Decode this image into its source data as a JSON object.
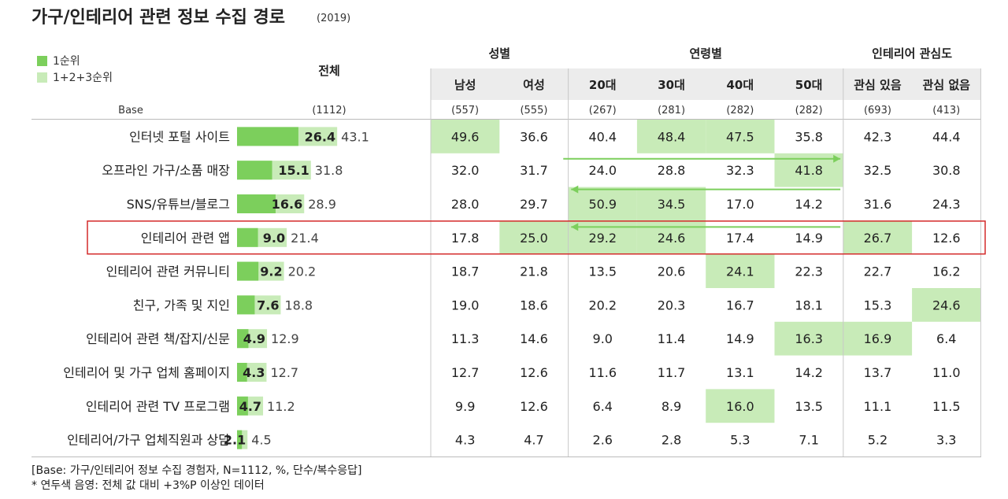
{
  "title": "가구/인테리어 관련 정보 수집 경로",
  "year": "(2019)",
  "legend": [
    {
      "label": "1순위",
      "color": "#7ccf5c"
    },
    {
      "label": "1+2+3순위",
      "color": "#c8ebb8"
    }
  ],
  "colors": {
    "dark_bar": "#7ccf5c",
    "light_bar": "#c8ebb8",
    "highlight": "#c8ebb8",
    "arrow": "#7ccf5c",
    "box": "#d42a2a"
  },
  "base_label": "Base",
  "overall_label": "전체",
  "groups": [
    {
      "label": "성별",
      "cols": [
        0,
        1
      ]
    },
    {
      "label": "연령별",
      "cols": [
        2,
        3,
        4,
        5
      ]
    },
    {
      "label": "인테리어 관심도",
      "cols": [
        6,
        7
      ]
    }
  ],
  "columns": [
    "남성",
    "여성",
    "20대",
    "30대",
    "40대",
    "50대",
    "관심 있음",
    "관심 없음"
  ],
  "bases": {
    "overall": "(1112)",
    "columns": [
      "(557)",
      "(555)",
      "(267)",
      "(281)",
      "(282)",
      "(282)",
      "(693)",
      "(413)"
    ]
  },
  "chart_data": {
    "type": "table",
    "rows": [
      {
        "label": "인터넷 포털 사이트",
        "first": 26.4,
        "top3": 43.1,
        "cells": [
          "49.6",
          "36.6",
          "40.4",
          "48.4",
          "47.5",
          "35.8",
          "42.3",
          "44.4"
        ],
        "hi": [
          0,
          3,
          4
        ]
      },
      {
        "label": "오프라인 가구/소품 매장",
        "first": 15.1,
        "top3": 31.8,
        "cells": [
          "32.0",
          "31.7",
          "24.0",
          "28.8",
          "32.3",
          "41.8",
          "32.5",
          "30.8"
        ],
        "hi": [
          5
        ]
      },
      {
        "label": "SNS/유튜브/블로그",
        "first": 16.6,
        "top3": 28.9,
        "cells": [
          "28.0",
          "29.7",
          "50.9",
          "34.5",
          "17.0",
          "14.2",
          "31.6",
          "24.3"
        ],
        "hi": [
          2,
          3
        ]
      },
      {
        "label": "인테리어 관련 앱",
        "first": 9.0,
        "top3": 21.4,
        "cells": [
          "17.8",
          "25.0",
          "29.2",
          "24.6",
          "17.4",
          "14.9",
          "26.7",
          "12.6"
        ],
        "hi": [
          1,
          2,
          3,
          6
        ]
      },
      {
        "label": "인테리어 관련 커뮤니티",
        "first": 9.2,
        "top3": 20.2,
        "cells": [
          "18.7",
          "21.8",
          "13.5",
          "20.6",
          "24.1",
          "22.3",
          "22.7",
          "16.2"
        ],
        "hi": [
          4
        ]
      },
      {
        "label": "친구, 가족 및 지인",
        "first": 7.6,
        "top3": 18.8,
        "cells": [
          "19.0",
          "18.6",
          "20.2",
          "20.3",
          "16.7",
          "18.1",
          "15.3",
          "24.6"
        ],
        "hi": [
          7
        ]
      },
      {
        "label": "인테리어 관련 책/잡지/신문",
        "first": 4.9,
        "top3": 12.9,
        "cells": [
          "11.3",
          "14.6",
          "9.0",
          "11.4",
          "14.9",
          "16.3",
          "16.9",
          "6.4"
        ],
        "hi": [
          5,
          6
        ]
      },
      {
        "label": "인테리어 및 가구 업체 홈페이지",
        "first": 4.3,
        "top3": 12.7,
        "cells": [
          "12.7",
          "12.6",
          "11.6",
          "11.7",
          "13.1",
          "14.2",
          "13.7",
          "11.0"
        ],
        "hi": []
      },
      {
        "label": "인테리어 관련 TV 프로그램",
        "first": 4.7,
        "top3": 11.2,
        "cells": [
          "9.9",
          "12.6",
          "6.4",
          "8.9",
          "16.0",
          "13.5",
          "11.1",
          "11.5"
        ],
        "hi": [
          4
        ]
      },
      {
        "label": "인테리어/가구 업체직원과 상담",
        "first": 2.1,
        "top3": 4.5,
        "cells": [
          "4.3",
          "4.7",
          "2.6",
          "2.8",
          "5.3",
          "7.1",
          "5.2",
          "3.3"
        ],
        "hi": []
      }
    ],
    "boxed_row": 3,
    "arrows": [
      {
        "row": 1,
        "from_col": 2,
        "to_col": 5,
        "direction": "right"
      },
      {
        "row": 2,
        "from_col": 5,
        "to_col": 2,
        "direction": "left"
      },
      {
        "row": 3,
        "from_col": 5,
        "to_col": 2,
        "direction": "left"
      }
    ]
  },
  "footnotes": [
    "[Base: 가구/인테리어 정보 수집 경험자, N=1112, %, 단수/복수응답]",
    "* 연두색 음영: 전체 값 대비 +3%P 이상인 데이터"
  ]
}
